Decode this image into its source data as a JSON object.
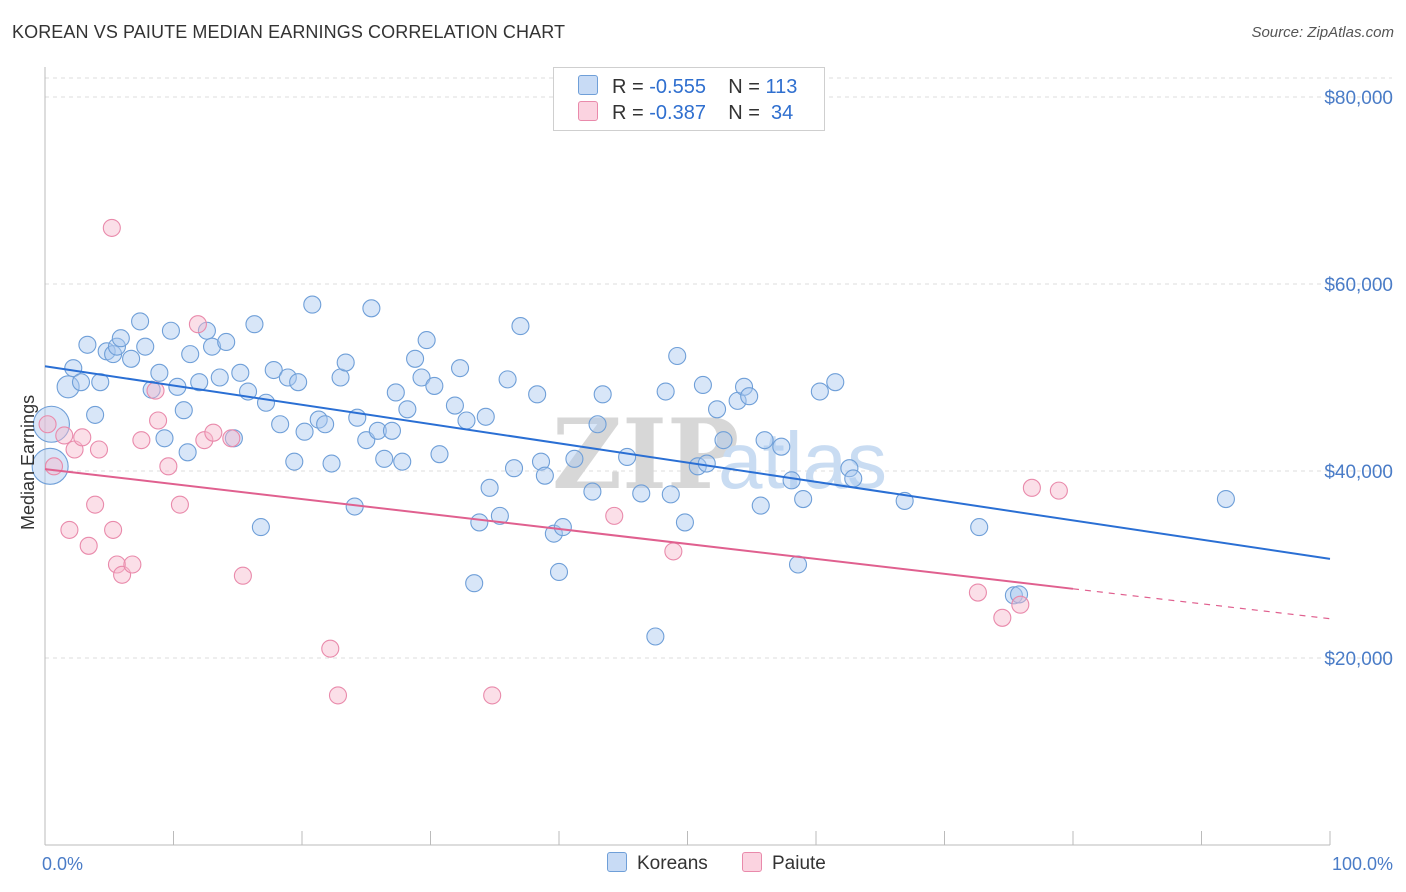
{
  "header": {
    "title": "KOREAN VS PAIUTE MEDIAN EARNINGS CORRELATION CHART",
    "source": "Source: ZipAtlas.com"
  },
  "watermark": {
    "zip": "ZIP",
    "atlas": "atlas"
  },
  "stats_legend": [
    {
      "r_label": "R =",
      "r_value": "-0.555",
      "n_label": "N =",
      "n_value": "113"
    },
    {
      "r_label": "R =",
      "r_value": "-0.387",
      "n_label": "N =",
      "n_value": "34"
    }
  ],
  "bottom_legend": [
    {
      "label": "Koreans"
    },
    {
      "label": "Paiute"
    }
  ],
  "colors": {
    "koreans_fill": "#a9c8f0",
    "koreans_stroke": "#6f9fd8",
    "koreans_line": "#2a6fd4",
    "paiute_fill": "#f6b8cc",
    "paiute_stroke": "#e98aab",
    "paiute_line": "#e0608f",
    "tick_text": "#4a7cc7",
    "grid": "#dddddd"
  },
  "chart_data": {
    "type": "scatter",
    "title": "KOREAN VS PAIUTE MEDIAN EARNINGS CORRELATION CHART",
    "ylabel": "Median Earnings",
    "xlabel": "",
    "xlim": [
      0,
      100
    ],
    "ylim": [
      0,
      83000
    ],
    "x_tick_labels": [
      "0.0%",
      "100.0%"
    ],
    "y_ticks": [
      {
        "value": 20000,
        "label": "$20,000"
      },
      {
        "value": 40000,
        "label": "$40,000"
      },
      {
        "value": 60000,
        "label": "$60,000"
      },
      {
        "value": 80000,
        "label": "$80,000"
      }
    ],
    "grid": true,
    "legend_position": "top-center",
    "series": [
      {
        "name": "Koreans",
        "r": -0.555,
        "n": 113,
        "trend": {
          "x": [
            0,
            100
          ],
          "y": [
            51200,
            30600
          ],
          "dashed_from": null
        },
        "points": [
          [
            0.5,
            45000,
            3
          ],
          [
            0.4,
            40500,
            3
          ],
          [
            1.8,
            49000,
            2
          ],
          [
            2.2,
            51000,
            1
          ],
          [
            2.8,
            49500,
            1
          ],
          [
            3.3,
            53500,
            1
          ],
          [
            3.9,
            46000,
            1
          ],
          [
            4.3,
            49500,
            1
          ],
          [
            4.8,
            52800,
            1
          ],
          [
            5.3,
            52500,
            1
          ],
          [
            5.6,
            53300,
            1
          ],
          [
            5.9,
            54200,
            1
          ],
          [
            6.7,
            52000,
            1
          ],
          [
            7.4,
            56000,
            1
          ],
          [
            7.8,
            53300,
            1
          ],
          [
            8.3,
            48700,
            1
          ],
          [
            8.9,
            50500,
            1
          ],
          [
            9.3,
            43500,
            1
          ],
          [
            9.8,
            55000,
            1
          ],
          [
            10.3,
            49000,
            1
          ],
          [
            10.8,
            46500,
            1
          ],
          [
            11.1,
            42000,
            1
          ],
          [
            11.3,
            52500,
            1
          ],
          [
            12.0,
            49500,
            1
          ],
          [
            12.6,
            55000,
            1
          ],
          [
            13.0,
            53300,
            1
          ],
          [
            13.6,
            50000,
            1
          ],
          [
            14.1,
            53800,
            1
          ],
          [
            14.7,
            43500,
            1
          ],
          [
            15.2,
            50500,
            1
          ],
          [
            15.8,
            48500,
            1
          ],
          [
            16.3,
            55700,
            1
          ],
          [
            16.8,
            34000,
            1
          ],
          [
            17.2,
            47300,
            1
          ],
          [
            17.8,
            50800,
            1
          ],
          [
            18.3,
            45000,
            1
          ],
          [
            18.9,
            50000,
            1
          ],
          [
            19.4,
            41000,
            1
          ],
          [
            19.7,
            49500,
            1
          ],
          [
            20.2,
            44200,
            1
          ],
          [
            20.8,
            57800,
            1
          ],
          [
            21.3,
            45500,
            1
          ],
          [
            21.8,
            45000,
            1
          ],
          [
            22.3,
            40800,
            1
          ],
          [
            23.0,
            50000,
            1
          ],
          [
            23.4,
            51600,
            1
          ],
          [
            24.1,
            36200,
            1
          ],
          [
            24.3,
            45700,
            1
          ],
          [
            25.0,
            43300,
            1
          ],
          [
            25.4,
            57400,
            1
          ],
          [
            25.9,
            44300,
            1
          ],
          [
            26.4,
            41300,
            1
          ],
          [
            27.0,
            44300,
            1
          ],
          [
            27.3,
            48400,
            1
          ],
          [
            27.8,
            41000,
            1
          ],
          [
            28.2,
            46600,
            1
          ],
          [
            28.8,
            52000,
            1
          ],
          [
            29.3,
            50000,
            1
          ],
          [
            29.7,
            54000,
            1
          ],
          [
            30.3,
            49100,
            1
          ],
          [
            30.7,
            41800,
            1
          ],
          [
            31.9,
            47000,
            1
          ],
          [
            32.3,
            51000,
            1
          ],
          [
            32.8,
            45400,
            1
          ],
          [
            33.4,
            28000,
            1
          ],
          [
            33.8,
            34500,
            1
          ],
          [
            34.3,
            45800,
            1
          ],
          [
            34.6,
            38200,
            1
          ],
          [
            35.4,
            35200,
            1
          ],
          [
            36.0,
            49800,
            1
          ],
          [
            36.5,
            40300,
            1
          ],
          [
            37.0,
            55500,
            1
          ],
          [
            38.3,
            48200,
            1
          ],
          [
            38.6,
            41000,
            1
          ],
          [
            38.9,
            39500,
            1
          ],
          [
            39.6,
            33300,
            1
          ],
          [
            40.0,
            29200,
            1
          ],
          [
            40.3,
            34000,
            1
          ],
          [
            41.2,
            41300,
            1
          ],
          [
            42.6,
            37800,
            1
          ],
          [
            43.0,
            45000,
            1
          ],
          [
            43.4,
            48200,
            1
          ],
          [
            45.3,
            41500,
            1
          ],
          [
            46.4,
            37600,
            1
          ],
          [
            47.5,
            22300,
            1
          ],
          [
            48.3,
            48500,
            1
          ],
          [
            48.7,
            37500,
            1
          ],
          [
            49.2,
            52300,
            1
          ],
          [
            49.8,
            34500,
            1
          ],
          [
            50.8,
            40500,
            1
          ],
          [
            51.2,
            49200,
            1
          ],
          [
            51.5,
            40800,
            1
          ],
          [
            52.3,
            46600,
            1
          ],
          [
            52.8,
            43300,
            1
          ],
          [
            53.9,
            47500,
            1
          ],
          [
            54.4,
            49000,
            1
          ],
          [
            54.8,
            48000,
            1
          ],
          [
            55.7,
            36300,
            1
          ],
          [
            56.0,
            43300,
            1
          ],
          [
            57.3,
            42600,
            1
          ],
          [
            58.1,
            39000,
            1
          ],
          [
            58.6,
            30000,
            1
          ],
          [
            59.0,
            37000,
            1
          ],
          [
            60.3,
            48500,
            1
          ],
          [
            61.5,
            49500,
            1
          ],
          [
            62.6,
            40300,
            1
          ],
          [
            62.9,
            39200,
            1
          ],
          [
            66.9,
            36800,
            1
          ],
          [
            72.7,
            34000,
            1
          ],
          [
            75.4,
            26700,
            1
          ],
          [
            75.8,
            26800,
            1
          ],
          [
            91.9,
            37000,
            1
          ]
        ]
      },
      {
        "name": "Paiute",
        "r": -0.387,
        "n": 34,
        "trend": {
          "x": [
            0,
            100
          ],
          "y": [
            40200,
            24200
          ],
          "dashed_from": 80
        },
        "points": [
          [
            0.2,
            45000,
            1
          ],
          [
            0.7,
            40500,
            1
          ],
          [
            1.5,
            43800,
            1
          ],
          [
            1.9,
            33700,
            1
          ],
          [
            2.3,
            42300,
            1
          ],
          [
            2.9,
            43600,
            1
          ],
          [
            3.4,
            32000,
            1
          ],
          [
            3.9,
            36400,
            1
          ],
          [
            4.2,
            42300,
            1
          ],
          [
            5.2,
            66000,
            1
          ],
          [
            5.3,
            33700,
            1
          ],
          [
            5.6,
            30000,
            1
          ],
          [
            6.0,
            28900,
            1
          ],
          [
            6.8,
            30000,
            1
          ],
          [
            7.5,
            43300,
            1
          ],
          [
            8.6,
            48600,
            1
          ],
          [
            8.8,
            45400,
            1
          ],
          [
            9.6,
            40500,
            1
          ],
          [
            10.5,
            36400,
            1
          ],
          [
            11.9,
            55700,
            1
          ],
          [
            12.4,
            43300,
            1
          ],
          [
            13.1,
            44100,
            1
          ],
          [
            14.5,
            43500,
            1
          ],
          [
            15.4,
            28800,
            1
          ],
          [
            22.2,
            21000,
            1
          ],
          [
            22.8,
            16000,
            1
          ],
          [
            34.8,
            16000,
            1
          ],
          [
            44.3,
            35200,
            1
          ],
          [
            48.9,
            31400,
            1
          ],
          [
            72.6,
            27000,
            1
          ],
          [
            74.5,
            24300,
            1
          ],
          [
            75.9,
            25700,
            1
          ],
          [
            76.8,
            38200,
            1
          ],
          [
            78.9,
            37900,
            1
          ]
        ]
      }
    ]
  }
}
